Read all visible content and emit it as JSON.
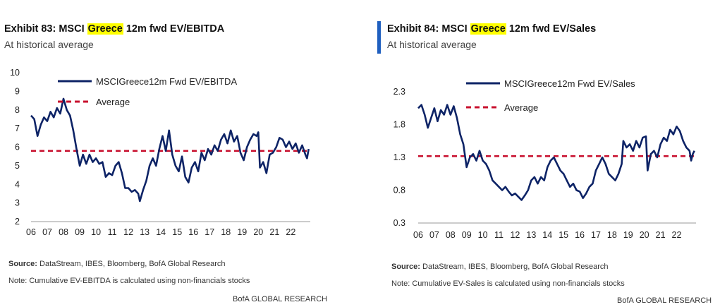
{
  "exhibits": [
    {
      "title_prefix": "Exhibit 83: MSCI ",
      "title_highlight": "Greece",
      "title_suffix": " 12m fwd EV/EBITDA",
      "subtitle": "At historical average",
      "source_label": "Source:",
      "source_text": " DataStream, IBES, Bloomberg, BofA Global Research",
      "note": "Note: Cumulative EV-EBITDA is calculated using non-financials stocks",
      "brand": "BofA GLOBAL RESEARCH"
    },
    {
      "title_prefix": "Exhibit 84: MSCI ",
      "title_highlight": "Greece",
      "title_suffix": " 12m fwd EV/Sales",
      "subtitle": "At historical average",
      "source_label": "Source:",
      "source_text": " DataStream, IBES, Bloomberg, BofA Global Research",
      "note": "Note: Cumulative EV-Sales is calculated using non-financials stocks",
      "brand": "BofA GLOBAL RESEARCH"
    }
  ],
  "colors": {
    "series": "#0d2366",
    "average": "#c8102e",
    "highlight": "#ffff00",
    "accent": "#1f5fbf"
  },
  "chart_data": [
    {
      "type": "line",
      "x_tick_labels": [
        "06",
        "07",
        "08",
        "09",
        "10",
        "11",
        "12",
        "13",
        "14",
        "15",
        "16",
        "17",
        "18",
        "19",
        "20",
        "21",
        "22"
      ],
      "xlim": [
        2006.0,
        2023.2
      ],
      "ylim": [
        2,
        10
      ],
      "y_ticks": [
        2,
        3,
        4,
        5,
        6,
        7,
        8,
        9,
        10
      ],
      "legend_placement": "top-left",
      "grid": false,
      "average": {
        "name": "Average",
        "value": 5.8
      },
      "series": [
        {
          "name": "MSCIGreece12m  Fwd EV/EBITDA",
          "points": [
            [
              2006.0,
              7.7
            ],
            [
              2006.2,
              7.5
            ],
            [
              2006.4,
              6.6
            ],
            [
              2006.6,
              7.2
            ],
            [
              2006.8,
              7.6
            ],
            [
              2007.0,
              7.4
            ],
            [
              2007.2,
              7.9
            ],
            [
              2007.4,
              7.6
            ],
            [
              2007.6,
              8.1
            ],
            [
              2007.8,
              7.8
            ],
            [
              2008.0,
              8.6
            ],
            [
              2008.2,
              8.0
            ],
            [
              2008.4,
              7.7
            ],
            [
              2008.6,
              6.9
            ],
            [
              2008.8,
              5.9
            ],
            [
              2009.0,
              5.0
            ],
            [
              2009.2,
              5.6
            ],
            [
              2009.4,
              5.1
            ],
            [
              2009.6,
              5.6
            ],
            [
              2009.8,
              5.2
            ],
            [
              2010.0,
              5.4
            ],
            [
              2010.2,
              5.1
            ],
            [
              2010.4,
              5.2
            ],
            [
              2010.6,
              4.4
            ],
            [
              2010.8,
              4.6
            ],
            [
              2011.0,
              4.5
            ],
            [
              2011.2,
              5.0
            ],
            [
              2011.4,
              5.2
            ],
            [
              2011.6,
              4.6
            ],
            [
              2011.8,
              3.8
            ],
            [
              2012.0,
              3.8
            ],
            [
              2012.2,
              3.6
            ],
            [
              2012.4,
              3.7
            ],
            [
              2012.6,
              3.5
            ],
            [
              2012.7,
              3.1
            ],
            [
              2012.9,
              3.7
            ],
            [
              2013.1,
              4.2
            ],
            [
              2013.3,
              5.0
            ],
            [
              2013.5,
              5.4
            ],
            [
              2013.7,
              5.0
            ],
            [
              2013.9,
              5.9
            ],
            [
              2014.1,
              6.6
            ],
            [
              2014.3,
              5.8
            ],
            [
              2014.5,
              6.9
            ],
            [
              2014.7,
              5.6
            ],
            [
              2014.9,
              5.0
            ],
            [
              2015.1,
              4.7
            ],
            [
              2015.3,
              5.5
            ],
            [
              2015.5,
              4.4
            ],
            [
              2015.7,
              4.1
            ],
            [
              2015.9,
              4.9
            ],
            [
              2016.1,
              5.2
            ],
            [
              2016.3,
              4.7
            ],
            [
              2016.5,
              5.7
            ],
            [
              2016.7,
              5.3
            ],
            [
              2016.9,
              5.9
            ],
            [
              2017.1,
              5.6
            ],
            [
              2017.3,
              6.1
            ],
            [
              2017.5,
              5.8
            ],
            [
              2017.7,
              6.4
            ],
            [
              2017.9,
              6.7
            ],
            [
              2018.1,
              6.2
            ],
            [
              2018.3,
              6.9
            ],
            [
              2018.5,
              6.3
            ],
            [
              2018.7,
              6.6
            ],
            [
              2018.9,
              5.7
            ],
            [
              2019.1,
              5.3
            ],
            [
              2019.3,
              6.0
            ],
            [
              2019.5,
              6.4
            ],
            [
              2019.7,
              6.7
            ],
            [
              2019.9,
              6.6
            ],
            [
              2020.0,
              6.8
            ],
            [
              2020.1,
              4.9
            ],
            [
              2020.3,
              5.2
            ],
            [
              2020.5,
              4.6
            ],
            [
              2020.7,
              5.6
            ],
            [
              2020.9,
              5.7
            ],
            [
              2021.1,
              6.0
            ],
            [
              2021.3,
              6.5
            ],
            [
              2021.5,
              6.4
            ],
            [
              2021.7,
              6.0
            ],
            [
              2021.9,
              6.3
            ],
            [
              2022.1,
              5.9
            ],
            [
              2022.3,
              6.2
            ],
            [
              2022.5,
              5.7
            ],
            [
              2022.7,
              6.1
            ],
            [
              2022.9,
              5.6
            ],
            [
              2023.0,
              5.4
            ],
            [
              2023.1,
              5.9
            ]
          ]
        }
      ]
    },
    {
      "type": "line",
      "x_tick_labels": [
        "06",
        "07",
        "08",
        "09",
        "10",
        "11",
        "12",
        "13",
        "14",
        "15",
        "16",
        "17",
        "18",
        "19",
        "20",
        "21",
        "22"
      ],
      "xlim": [
        2006.0,
        2023.2
      ],
      "ylim": [
        0.3,
        2.3
      ],
      "y_ticks": [
        0.3,
        0.8,
        1.3,
        1.8,
        2.3
      ],
      "legend_placement": "top-left",
      "grid": false,
      "average": {
        "name": "Average",
        "value": 1.32
      },
      "series": [
        {
          "name": "MSCIGreece12m  Fwd EV/Sales",
          "points": [
            [
              2006.0,
              2.05
            ],
            [
              2006.2,
              2.1
            ],
            [
              2006.4,
              1.95
            ],
            [
              2006.6,
              1.75
            ],
            [
              2006.8,
              1.9
            ],
            [
              2007.0,
              2.05
            ],
            [
              2007.2,
              1.85
            ],
            [
              2007.4,
              2.02
            ],
            [
              2007.6,
              1.95
            ],
            [
              2007.8,
              2.1
            ],
            [
              2008.0,
              1.95
            ],
            [
              2008.2,
              2.08
            ],
            [
              2008.4,
              1.9
            ],
            [
              2008.6,
              1.65
            ],
            [
              2008.8,
              1.5
            ],
            [
              2009.0,
              1.15
            ],
            [
              2009.2,
              1.3
            ],
            [
              2009.4,
              1.35
            ],
            [
              2009.6,
              1.25
            ],
            [
              2009.8,
              1.4
            ],
            [
              2010.0,
              1.25
            ],
            [
              2010.2,
              1.2
            ],
            [
              2010.4,
              1.1
            ],
            [
              2010.6,
              0.95
            ],
            [
              2010.8,
              0.9
            ],
            [
              2011.0,
              0.85
            ],
            [
              2011.2,
              0.8
            ],
            [
              2011.4,
              0.85
            ],
            [
              2011.6,
              0.78
            ],
            [
              2011.8,
              0.72
            ],
            [
              2012.0,
              0.75
            ],
            [
              2012.2,
              0.7
            ],
            [
              2012.4,
              0.65
            ],
            [
              2012.6,
              0.72
            ],
            [
              2012.8,
              0.8
            ],
            [
              2013.0,
              0.95
            ],
            [
              2013.2,
              1.0
            ],
            [
              2013.4,
              0.9
            ],
            [
              2013.6,
              1.0
            ],
            [
              2013.8,
              0.95
            ],
            [
              2014.0,
              1.15
            ],
            [
              2014.2,
              1.25
            ],
            [
              2014.4,
              1.3
            ],
            [
              2014.6,
              1.2
            ],
            [
              2014.8,
              1.1
            ],
            [
              2015.0,
              1.05
            ],
            [
              2015.2,
              0.95
            ],
            [
              2015.4,
              0.85
            ],
            [
              2015.6,
              0.9
            ],
            [
              2015.8,
              0.8
            ],
            [
              2016.0,
              0.78
            ],
            [
              2016.2,
              0.68
            ],
            [
              2016.4,
              0.75
            ],
            [
              2016.6,
              0.85
            ],
            [
              2016.8,
              0.9
            ],
            [
              2017.0,
              1.1
            ],
            [
              2017.2,
              1.2
            ],
            [
              2017.4,
              1.3
            ],
            [
              2017.6,
              1.2
            ],
            [
              2017.8,
              1.05
            ],
            [
              2018.0,
              1.0
            ],
            [
              2018.2,
              0.95
            ],
            [
              2018.4,
              1.05
            ],
            [
              2018.6,
              1.2
            ],
            [
              2018.7,
              1.55
            ],
            [
              2018.9,
              1.45
            ],
            [
              2019.1,
              1.5
            ],
            [
              2019.3,
              1.4
            ],
            [
              2019.5,
              1.55
            ],
            [
              2019.7,
              1.45
            ],
            [
              2019.9,
              1.6
            ],
            [
              2020.1,
              1.62
            ],
            [
              2020.2,
              1.1
            ],
            [
              2020.4,
              1.35
            ],
            [
              2020.6,
              1.4
            ],
            [
              2020.8,
              1.3
            ],
            [
              2021.0,
              1.5
            ],
            [
              2021.2,
              1.6
            ],
            [
              2021.4,
              1.55
            ],
            [
              2021.6,
              1.72
            ],
            [
              2021.8,
              1.65
            ],
            [
              2022.0,
              1.77
            ],
            [
              2022.2,
              1.7
            ],
            [
              2022.4,
              1.55
            ],
            [
              2022.6,
              1.45
            ],
            [
              2022.8,
              1.4
            ],
            [
              2022.9,
              1.25
            ],
            [
              2023.0,
              1.35
            ],
            [
              2023.1,
              1.4
            ]
          ]
        }
      ]
    }
  ]
}
